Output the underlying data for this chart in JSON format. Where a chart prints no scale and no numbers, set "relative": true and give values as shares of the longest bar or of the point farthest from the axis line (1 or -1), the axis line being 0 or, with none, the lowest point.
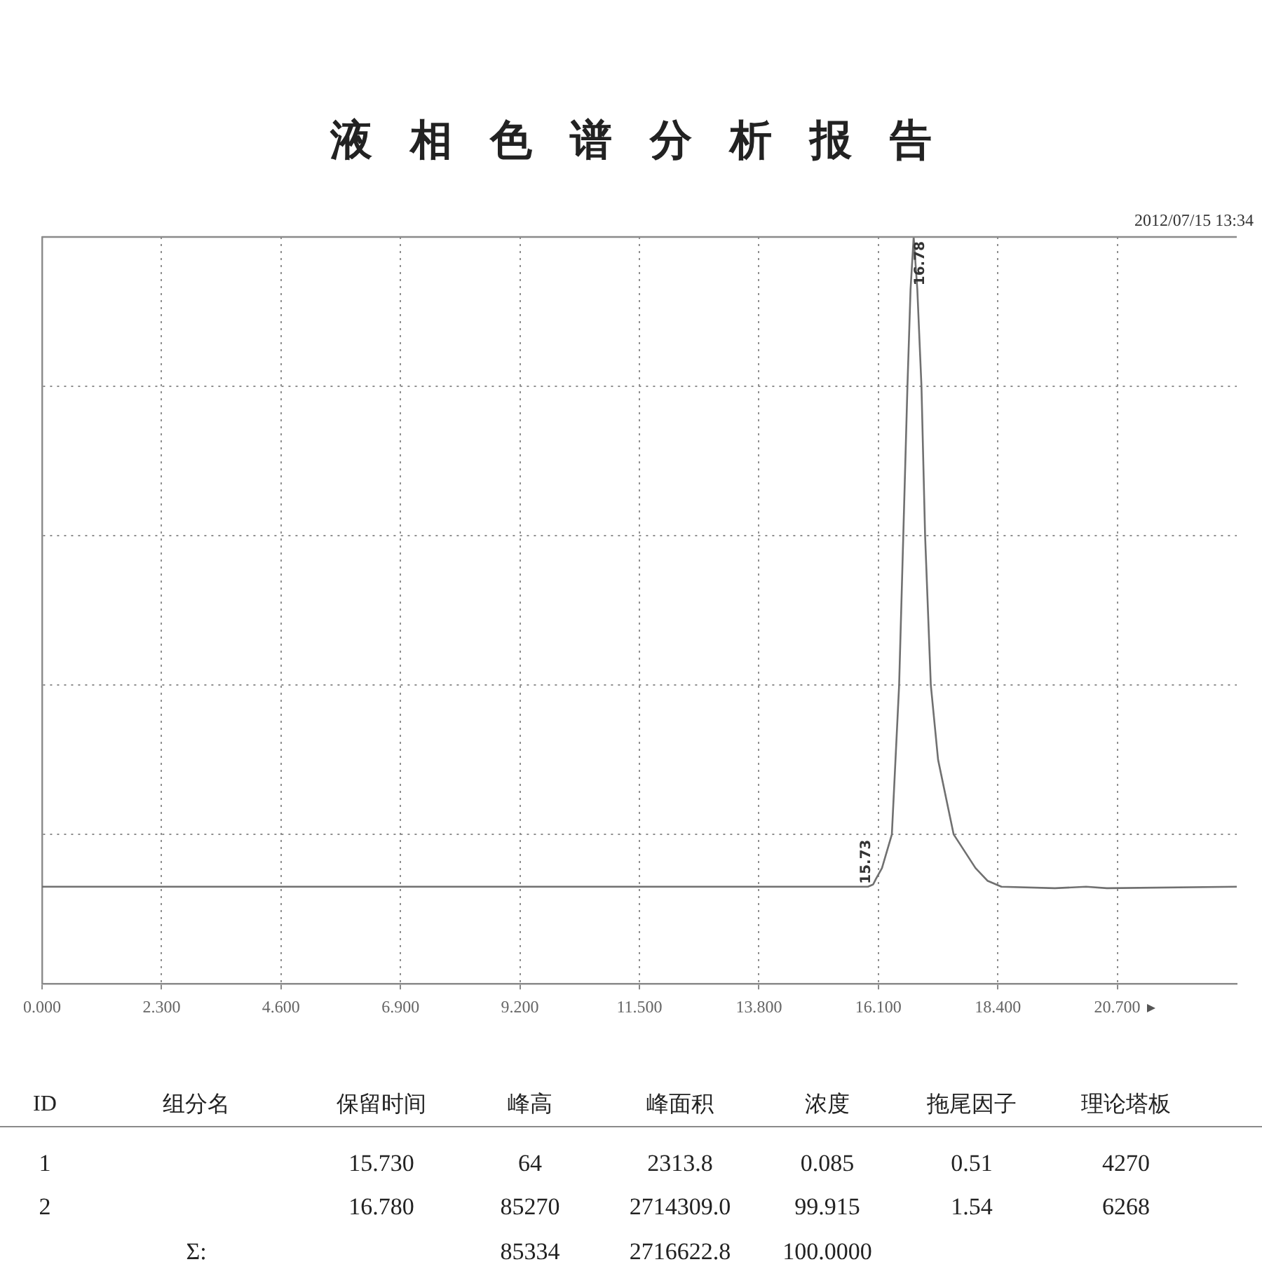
{
  "chart_data": {
    "type": "line",
    "title": "液相色谱分析报告",
    "relative": true,
    "x": [
      0,
      15.6,
      15.73,
      15.9,
      16.0,
      16.05,
      16.17,
      16.36,
      16.5,
      16.58,
      16.66,
      16.72,
      16.78,
      16.85,
      16.93,
      17.0,
      17.11,
      17.25,
      17.55,
      17.97,
      18.2,
      18.47,
      19.5,
      20.1,
      20.5,
      23
    ],
    "values": [
      0.13,
      0.13,
      0.13,
      0.13,
      0.133,
      0.14,
      0.155,
      0.2,
      0.4,
      0.6,
      0.8,
      0.93,
      1,
      0.93,
      0.8,
      0.6,
      0.4,
      0.3,
      0.2,
      0.155,
      0.138,
      0.13,
      0.128,
      0.13,
      0.128,
      0.13
    ],
    "color": "#707070",
    "xlim": [
      0,
      23
    ],
    "xticks": [
      {
        "value": 0,
        "label": "0.000"
      },
      {
        "value": 2.3,
        "label": "2.300"
      },
      {
        "value": 4.6,
        "label": "4.600"
      },
      {
        "value": 6.9,
        "label": "6.900"
      },
      {
        "value": 9.2,
        "label": "9.200"
      },
      {
        "value": 11.5,
        "label": "11.500"
      },
      {
        "value": 13.8,
        "label": "13.800"
      },
      {
        "value": 16.1,
        "label": "16.100"
      },
      {
        "value": 18.4,
        "label": "18.400"
      },
      {
        "value": 20.7,
        "label": "20.700"
      }
    ],
    "grid": true,
    "annotations": [
      {
        "text": "15.73",
        "x": 15.73,
        "y": 0.13
      },
      {
        "text": "16.78",
        "x": 16.78,
        "y": 1
      },
      "2012/07/15 13:34",
      "ID",
      "组分名",
      "保留时间",
      "峰高",
      "峰面积",
      "浓度",
      "拖尾因子",
      "理论塔板",
      "1",
      "15.730",
      "64",
      "2313.8",
      "0.085",
      "0.51",
      "4270",
      "2",
      "16.780",
      "85270",
      "2714309.0",
      "99.915",
      "1.54",
      "6268",
      "Σ:",
      "85334",
      "2716622.8",
      "100.0000"
    ]
  }
}
